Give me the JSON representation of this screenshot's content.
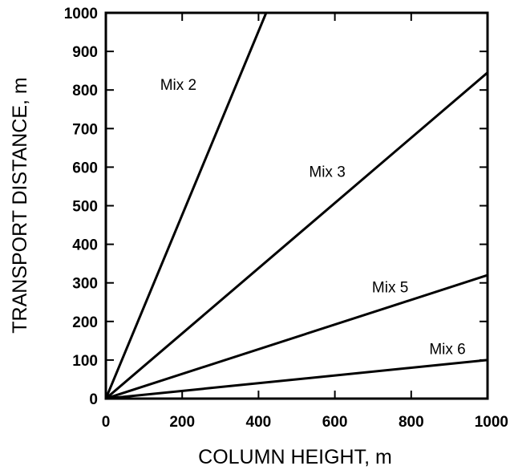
{
  "chart_data": {
    "type": "line",
    "title": "",
    "xlabel": "COLUMN HEIGHT, m",
    "ylabel": "TRANSPORT DISTANCE, m",
    "xlim": [
      0,
      1000
    ],
    "ylim": [
      0,
      1000
    ],
    "x_ticks": [
      0,
      200,
      400,
      600,
      800,
      1000
    ],
    "y_ticks": [
      0,
      100,
      200,
      300,
      400,
      500,
      600,
      700,
      800,
      900,
      1000
    ],
    "x_tick_labels": [
      "0",
      "200",
      "400",
      "600",
      "800",
      "1000"
    ],
    "y_tick_labels": [
      "0",
      "100",
      "200",
      "300",
      "400",
      "500",
      "600",
      "700",
      "800",
      "900",
      "1000"
    ],
    "grid": false,
    "legend": "none",
    "series": [
      {
        "name": "Mix 2",
        "x": [
          0,
          420
        ],
        "y": [
          0,
          1000
        ],
        "label_at": [
          190,
          800
        ]
      },
      {
        "name": "Mix 3",
        "x": [
          0,
          1000
        ],
        "y": [
          0,
          845
        ],
        "label_at": [
          580,
          575
        ]
      },
      {
        "name": "Mix 5",
        "x": [
          0,
          1000
        ],
        "y": [
          0,
          320
        ],
        "label_at": [
          745,
          275
        ]
      },
      {
        "name": "Mix 6",
        "x": [
          0,
          1000
        ],
        "y": [
          0,
          100
        ],
        "label_at": [
          895,
          115
        ]
      }
    ],
    "colors": {
      "line": "#000000",
      "background": "#ffffff"
    }
  }
}
